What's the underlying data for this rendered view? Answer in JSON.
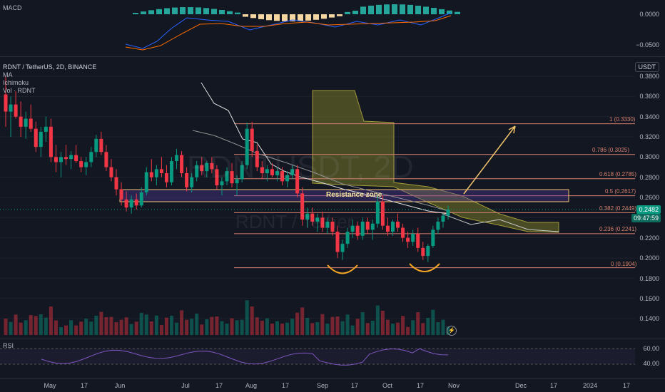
{
  "header": {
    "symbol_line": "RDNT / TetherUS, 2D, BINANCE",
    "indicators": [
      "MA",
      "Ichimoku",
      "Vol · RDNT"
    ],
    "macd_label": "MACD",
    "rsi_label": "RSI",
    "currency_button": "USDT"
  },
  "watermark": {
    "main": "RDNTUSDT, 2D",
    "sub": "RDNT / Tether"
  },
  "price_axis": {
    "ticks": [
      "0.3800",
      "0.3600",
      "0.3400",
      "0.3200",
      "0.3000",
      "0.2800",
      "0.2600",
      "0.2400",
      "0.2200",
      "0.2000",
      "0.1800",
      "0.1600",
      "0.1400"
    ],
    "current_price": "0.2482",
    "countdown": "09:47:59"
  },
  "macd_axis": {
    "ticks": [
      "0.0000",
      "−0.0500"
    ]
  },
  "rsi_axis": {
    "ticks": [
      "60.00",
      "40.00"
    ]
  },
  "date_axis": {
    "ticks": [
      "May",
      "17",
      "Jun",
      "Jul",
      "17",
      "Aug",
      "17",
      "Sep",
      "17",
      "Oct",
      "17",
      "Nov",
      "Dec",
      "17",
      "2024",
      "17"
    ]
  },
  "fib_levels": [
    {
      "label": "1 (0.3330)",
      "price": 0.333
    },
    {
      "label": "0.786 (0.3025)",
      "price": 0.3025
    },
    {
      "label": "0.618 (0.2785)",
      "price": 0.2785
    },
    {
      "label": "0.5 (0.2617)",
      "price": 0.2617
    },
    {
      "label": "0.382 (0.2449)",
      "price": 0.2449
    },
    {
      "label": "0.236 (0.2241)",
      "price": 0.2241
    },
    {
      "label": "0 (0.1904)",
      "price": 0.1904
    }
  ],
  "annotations": {
    "resistance_zone": "Resistance zone"
  },
  "colors": {
    "up": "#089981",
    "down": "#f23645",
    "fib": "#d6806f",
    "cloud": "#6b6a1e",
    "zone": "#4a3a8a",
    "arrow": "#f0c36a",
    "ma": "#c9c9c9"
  },
  "chart_data": {
    "type": "candlestick",
    "period": "2D",
    "candles": [
      [
        0.362,
        0.38,
        0.33,
        0.345
      ],
      [
        0.345,
        0.36,
        0.32,
        0.352
      ],
      [
        0.352,
        0.365,
        0.338,
        0.34
      ],
      [
        0.34,
        0.355,
        0.32,
        0.33
      ],
      [
        0.33,
        0.345,
        0.318,
        0.338
      ],
      [
        0.338,
        0.352,
        0.325,
        0.328
      ],
      [
        0.328,
        0.335,
        0.305,
        0.31
      ],
      [
        0.31,
        0.33,
        0.3,
        0.325
      ],
      [
        0.325,
        0.34,
        0.315,
        0.33
      ],
      [
        0.33,
        0.338,
        0.295,
        0.3
      ],
      [
        0.3,
        0.312,
        0.285,
        0.295
      ],
      [
        0.295,
        0.305,
        0.28,
        0.3
      ],
      [
        0.3,
        0.312,
        0.292,
        0.298
      ],
      [
        0.298,
        0.306,
        0.288,
        0.302
      ],
      [
        0.302,
        0.312,
        0.294,
        0.296
      ],
      [
        0.296,
        0.3,
        0.285,
        0.29
      ],
      [
        0.29,
        0.3,
        0.282,
        0.295
      ],
      [
        0.295,
        0.31,
        0.29,
        0.305
      ],
      [
        0.305,
        0.322,
        0.3,
        0.318
      ],
      [
        0.318,
        0.325,
        0.302,
        0.305
      ],
      [
        0.305,
        0.312,
        0.286,
        0.29
      ],
      [
        0.29,
        0.298,
        0.276,
        0.28
      ],
      [
        0.28,
        0.288,
        0.262,
        0.268
      ],
      [
        0.268,
        0.275,
        0.252,
        0.258
      ],
      [
        0.258,
        0.266,
        0.246,
        0.25
      ],
      [
        0.25,
        0.262,
        0.244,
        0.258
      ],
      [
        0.258,
        0.264,
        0.248,
        0.252
      ],
      [
        0.252,
        0.27,
        0.25,
        0.265
      ],
      [
        0.265,
        0.29,
        0.262,
        0.285
      ],
      [
        0.285,
        0.298,
        0.276,
        0.28
      ],
      [
        0.28,
        0.292,
        0.272,
        0.288
      ],
      [
        0.288,
        0.3,
        0.28,
        0.284
      ],
      [
        0.284,
        0.292,
        0.27,
        0.275
      ],
      [
        0.275,
        0.3,
        0.272,
        0.296
      ],
      [
        0.296,
        0.308,
        0.288,
        0.302
      ],
      [
        0.302,
        0.306,
        0.28,
        0.284
      ],
      [
        0.284,
        0.29,
        0.266,
        0.27
      ],
      [
        0.27,
        0.284,
        0.265,
        0.28
      ],
      [
        0.28,
        0.296,
        0.276,
        0.292
      ],
      [
        0.292,
        0.3,
        0.282,
        0.286
      ],
      [
        0.286,
        0.296,
        0.28,
        0.294
      ],
      [
        0.294,
        0.3,
        0.284,
        0.288
      ],
      [
        0.288,
        0.292,
        0.268,
        0.272
      ],
      [
        0.272,
        0.28,
        0.262,
        0.276
      ],
      [
        0.276,
        0.29,
        0.272,
        0.286
      ],
      [
        0.286,
        0.294,
        0.27,
        0.274
      ],
      [
        0.274,
        0.282,
        0.262,
        0.278
      ],
      [
        0.278,
        0.296,
        0.275,
        0.292
      ],
      [
        0.292,
        0.334,
        0.288,
        0.328
      ],
      [
        0.328,
        0.335,
        0.3,
        0.306
      ],
      [
        0.306,
        0.312,
        0.286,
        0.29
      ],
      [
        0.29,
        0.296,
        0.278,
        0.284
      ],
      [
        0.284,
        0.292,
        0.276,
        0.288
      ],
      [
        0.288,
        0.294,
        0.28,
        0.282
      ],
      [
        0.282,
        0.29,
        0.276,
        0.286
      ],
      [
        0.286,
        0.29,
        0.272,
        0.276
      ],
      [
        0.276,
        0.286,
        0.27,
        0.282
      ],
      [
        0.282,
        0.292,
        0.278,
        0.288
      ],
      [
        0.288,
        0.292,
        0.26,
        0.264
      ],
      [
        0.264,
        0.27,
        0.232,
        0.238
      ],
      [
        0.238,
        0.25,
        0.23,
        0.244
      ],
      [
        0.244,
        0.25,
        0.232,
        0.236
      ],
      [
        0.236,
        0.244,
        0.226,
        0.24
      ],
      [
        0.24,
        0.246,
        0.226,
        0.23
      ],
      [
        0.23,
        0.24,
        0.224,
        0.236
      ],
      [
        0.236,
        0.24,
        0.222,
        0.226
      ],
      [
        0.226,
        0.232,
        0.2,
        0.206
      ],
      [
        0.206,
        0.218,
        0.198,
        0.214
      ],
      [
        0.214,
        0.23,
        0.21,
        0.226
      ],
      [
        0.226,
        0.238,
        0.22,
        0.232
      ],
      [
        0.232,
        0.236,
        0.218,
        0.222
      ],
      [
        0.222,
        0.24,
        0.218,
        0.236
      ],
      [
        0.236,
        0.24,
        0.224,
        0.228
      ],
      [
        0.228,
        0.238,
        0.218,
        0.234
      ],
      [
        0.234,
        0.262,
        0.23,
        0.256
      ],
      [
        0.256,
        0.262,
        0.228,
        0.232
      ],
      [
        0.232,
        0.24,
        0.222,
        0.226
      ],
      [
        0.226,
        0.238,
        0.222,
        0.236
      ],
      [
        0.236,
        0.244,
        0.226,
        0.23
      ],
      [
        0.23,
        0.234,
        0.216,
        0.22
      ],
      [
        0.22,
        0.226,
        0.21,
        0.216
      ],
      [
        0.216,
        0.228,
        0.212,
        0.224
      ],
      [
        0.224,
        0.23,
        0.206,
        0.21
      ],
      [
        0.21,
        0.216,
        0.198,
        0.202
      ],
      [
        0.202,
        0.214,
        0.196,
        0.212
      ],
      [
        0.212,
        0.232,
        0.21,
        0.228
      ],
      [
        0.228,
        0.24,
        0.224,
        0.236
      ],
      [
        0.236,
        0.244,
        0.23,
        0.242
      ],
      [
        0.242,
        0.252,
        0.238,
        0.248
      ]
    ]
  }
}
